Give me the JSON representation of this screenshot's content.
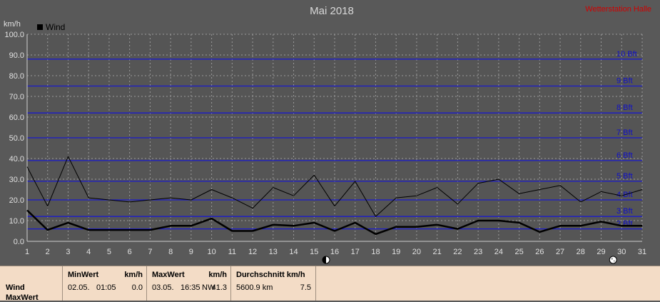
{
  "header": {
    "title": "Mai 2018",
    "brand": "Wetterstation Halle"
  },
  "chart_data": {
    "type": "line",
    "title": "Mai 2018",
    "ylabel": "km/h",
    "ylim": [
      0,
      100
    ],
    "xlim": [
      1,
      31
    ],
    "y_ticks": [
      "0.0",
      "10.0",
      "20.0",
      "30.0",
      "40.0",
      "50.0",
      "60.0",
      "70.0",
      "80.0",
      "90.0",
      "100.0"
    ],
    "x_ticks": [
      "1",
      "2",
      "3",
      "4",
      "5",
      "6",
      "7",
      "8",
      "9",
      "10",
      "11",
      "12",
      "13",
      "14",
      "15",
      "16",
      "17",
      "18",
      "19",
      "20",
      "21",
      "22",
      "23",
      "24",
      "25",
      "26",
      "27",
      "28",
      "29",
      "30",
      "31"
    ],
    "legend": {
      "label": "Wind",
      "placement": "top-left"
    },
    "grid": true,
    "beaufort_lines": [
      {
        "label": "2 Bft",
        "value": 6
      },
      {
        "label": "3 Bft",
        "value": 12
      },
      {
        "label": "4 Bft",
        "value": 20
      },
      {
        "label": "5 Bft",
        "value": 29
      },
      {
        "label": "6 Bft",
        "value": 39
      },
      {
        "label": "7 Bft",
        "value": 50
      },
      {
        "label": "8 Bft",
        "value": 62
      },
      {
        "label": "9 Bft",
        "value": 75
      },
      {
        "label": "10 Bft",
        "value": 88
      }
    ],
    "series": [
      {
        "x": [
          1,
          2,
          3,
          4,
          5,
          6,
          7,
          8,
          9,
          10,
          11,
          12,
          13,
          14,
          15,
          16,
          17,
          18,
          19,
          20,
          21,
          22,
          23,
          24,
          25,
          26,
          27,
          28,
          29,
          30,
          31
        ],
        "values": [
          36,
          17,
          41,
          21,
          20,
          19,
          20,
          21,
          20,
          25,
          21,
          16,
          26,
          22,
          32,
          17,
          29,
          12,
          21,
          22,
          26,
          18,
          28,
          30,
          23,
          25,
          27,
          19,
          24,
          22,
          25
        ],
        "style": "thin"
      },
      {
        "x": [
          1,
          2,
          3,
          4,
          5,
          6,
          7,
          8,
          9,
          10,
          11,
          12,
          13,
          14,
          15,
          16,
          17,
          18,
          19,
          20,
          21,
          22,
          23,
          24,
          25,
          26,
          27,
          28,
          29,
          30,
          31
        ],
        "values": [
          15,
          5.5,
          9,
          5.5,
          5.5,
          5.5,
          5.5,
          7.5,
          7.5,
          11,
          5,
          5,
          8,
          7.5,
          9,
          5,
          9,
          3.5,
          7,
          7,
          8,
          6,
          10,
          10,
          9,
          4.5,
          7.5,
          7.5,
          9.5,
          7.5,
          7.5
        ],
        "style": "bold"
      }
    ],
    "moon_markers": [
      16,
      30
    ]
  },
  "table": {
    "row_labels": [
      "Wind",
      "MaxWert"
    ],
    "min": {
      "header": "MinWert",
      "unit": "km/h",
      "date": "02.05.",
      "time": "01:05",
      "value": "0.0"
    },
    "max": {
      "header": "MaxWert",
      "unit": "km/h",
      "date": "03.05.",
      "time": "16:35",
      "dir": "NW",
      "value": "41.3"
    },
    "avg": {
      "header": "Durchschnitt km/h",
      "distance": "5600.9 km",
      "value": "7.5"
    }
  }
}
